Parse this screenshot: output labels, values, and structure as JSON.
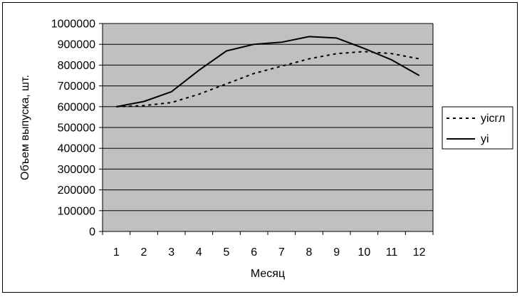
{
  "chart_data": {
    "type": "line",
    "xlabel": "Месяц",
    "ylabel": "Объем выпуска, шт.",
    "categories": [
      "1",
      "2",
      "3",
      "4",
      "5",
      "6",
      "7",
      "8",
      "9",
      "10",
      "11",
      "12"
    ],
    "ylim": [
      0,
      1000000
    ],
    "yticks": [
      "0",
      "100000",
      "200000",
      "300000",
      "400000",
      "500000",
      "600000",
      "700000",
      "800000",
      "900000",
      "1000000"
    ],
    "grid": true,
    "legend_position": "right",
    "plot_background": "#c0c0c0",
    "series": [
      {
        "name": "yiсгл",
        "style": "dotted",
        "color": "#000000",
        "values": [
          600000,
          605000,
          620000,
          660000,
          710000,
          760000,
          795000,
          830000,
          855000,
          865000,
          855000,
          830000
        ]
      },
      {
        "name": "yi",
        "style": "solid",
        "color": "#000000",
        "values": [
          600000,
          625000,
          672000,
          775000,
          868000,
          900000,
          910000,
          937000,
          930000,
          880000,
          825000,
          750000
        ]
      }
    ]
  }
}
